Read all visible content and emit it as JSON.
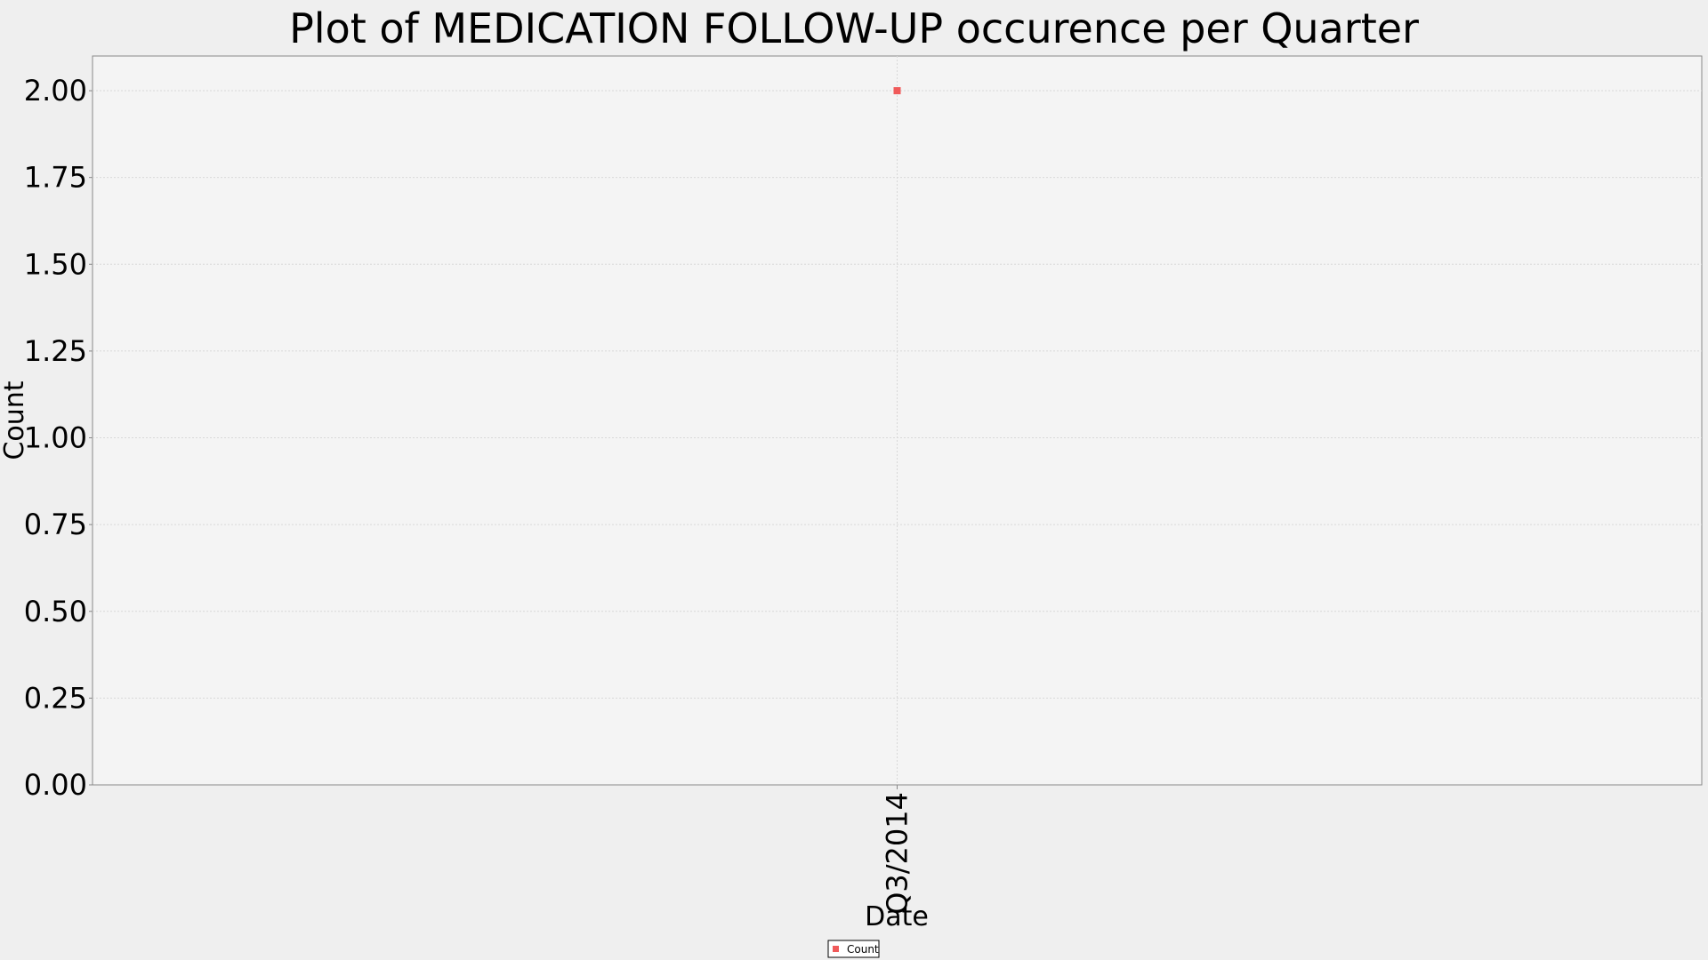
{
  "chart_data": {
    "type": "scatter",
    "title": "Plot of MEDICATION FOLLOW-UP occurence per Quarter",
    "xlabel": "Date",
    "ylabel": "Count",
    "categories": [
      "Q3/2014"
    ],
    "series": [
      {
        "name": "Count",
        "values": [
          2
        ],
        "color": "#f05a5a"
      }
    ],
    "ylim": [
      0,
      2.1
    ],
    "yticks": [
      "0.00",
      "0.25",
      "0.50",
      "0.75",
      "1.00",
      "1.25",
      "1.50",
      "1.75",
      "2.00"
    ],
    "grid": true,
    "legend_position": "bottom-center"
  },
  "colors": {
    "page_background": "#efefef",
    "plot_background": "#f4f4f4",
    "grid": "#d8d8d8",
    "axis": "#888888"
  }
}
